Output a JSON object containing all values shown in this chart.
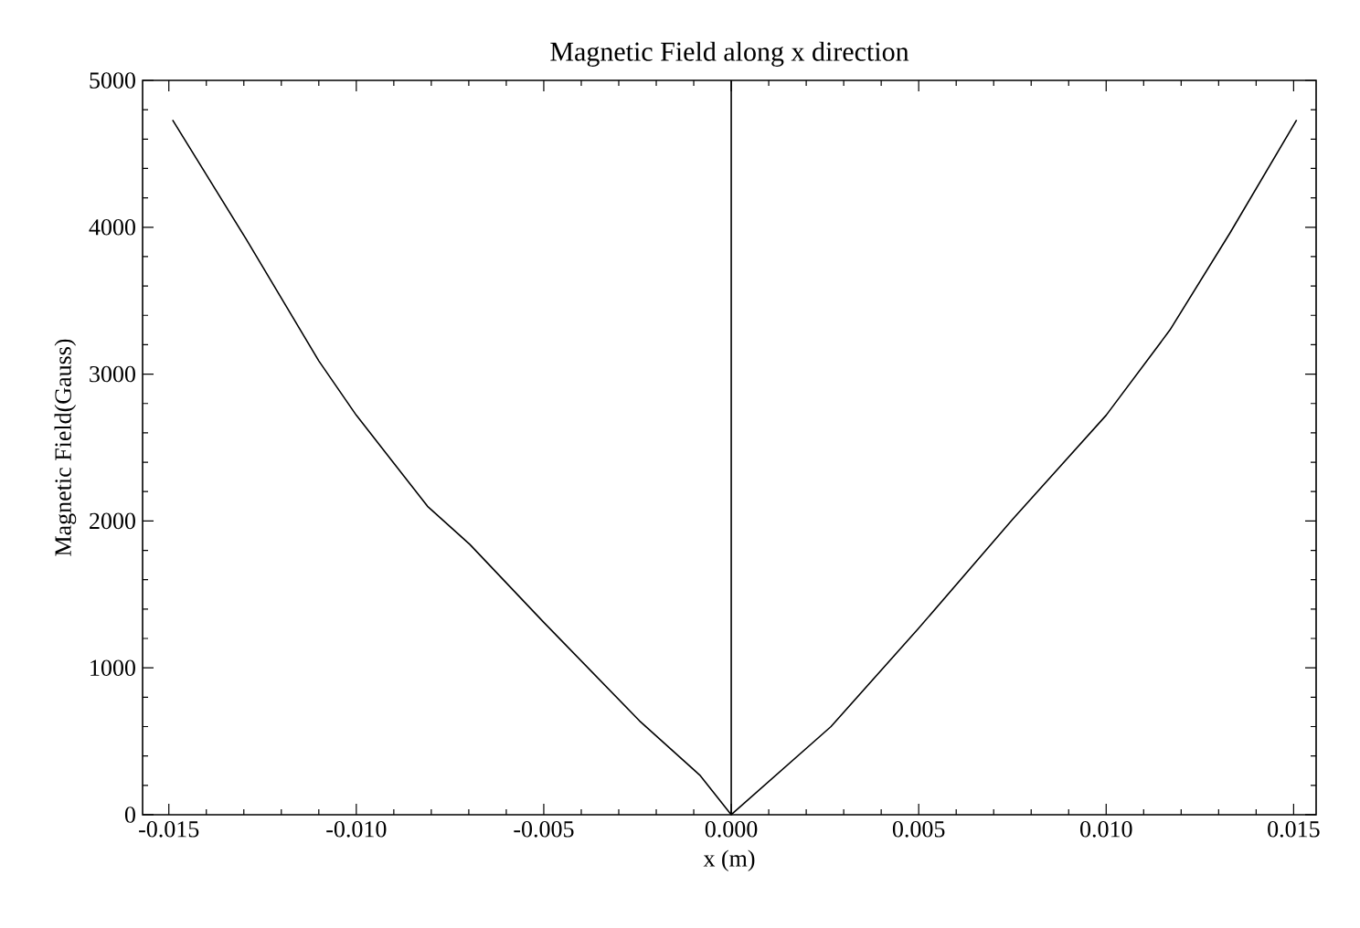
{
  "chart_data": {
    "type": "line",
    "title": "Magnetic Field along x direction",
    "xlabel": "x (m)",
    "ylabel": "Magnetic Field(Gauss)",
    "series": [
      {
        "color": "#000000",
        "x": [
          -0.0149,
          -0.01294,
          -0.011,
          -0.01,
          -0.0081,
          -0.00697,
          -0.005,
          -0.00245,
          -0.00084,
          0,
          0.00266,
          0.005,
          0.0075,
          0.01,
          0.0117,
          0.0133,
          0.01508
        ],
        "values": [
          4730,
          3920,
          3090,
          2720,
          2100,
          1840,
          1310,
          640,
          270,
          0,
          600,
          1270,
          2010,
          2720,
          3300,
          3960,
          4730
        ]
      }
    ],
    "xlim": [
      -0.0157,
      0.0156
    ],
    "ylim": [
      0,
      5000
    ],
    "xticks": [
      {
        "value": -0.015,
        "label": "-0.015"
      },
      {
        "value": -0.01,
        "label": "-0.010"
      },
      {
        "value": -0.005,
        "label": "-0.005"
      },
      {
        "value": 0,
        "label": "0.000"
      },
      {
        "value": 0.005,
        "label": "0.005"
      },
      {
        "value": 0.01,
        "label": "0.010"
      },
      {
        "value": 0.015,
        "label": "0.015"
      }
    ],
    "yticks": [
      0,
      1000,
      2000,
      3000,
      4000,
      5000
    ],
    "ref_lines": [
      {
        "axis": "x",
        "value": 0,
        "color": "#000000"
      }
    ],
    "marker": "none",
    "line_style": "solid"
  }
}
